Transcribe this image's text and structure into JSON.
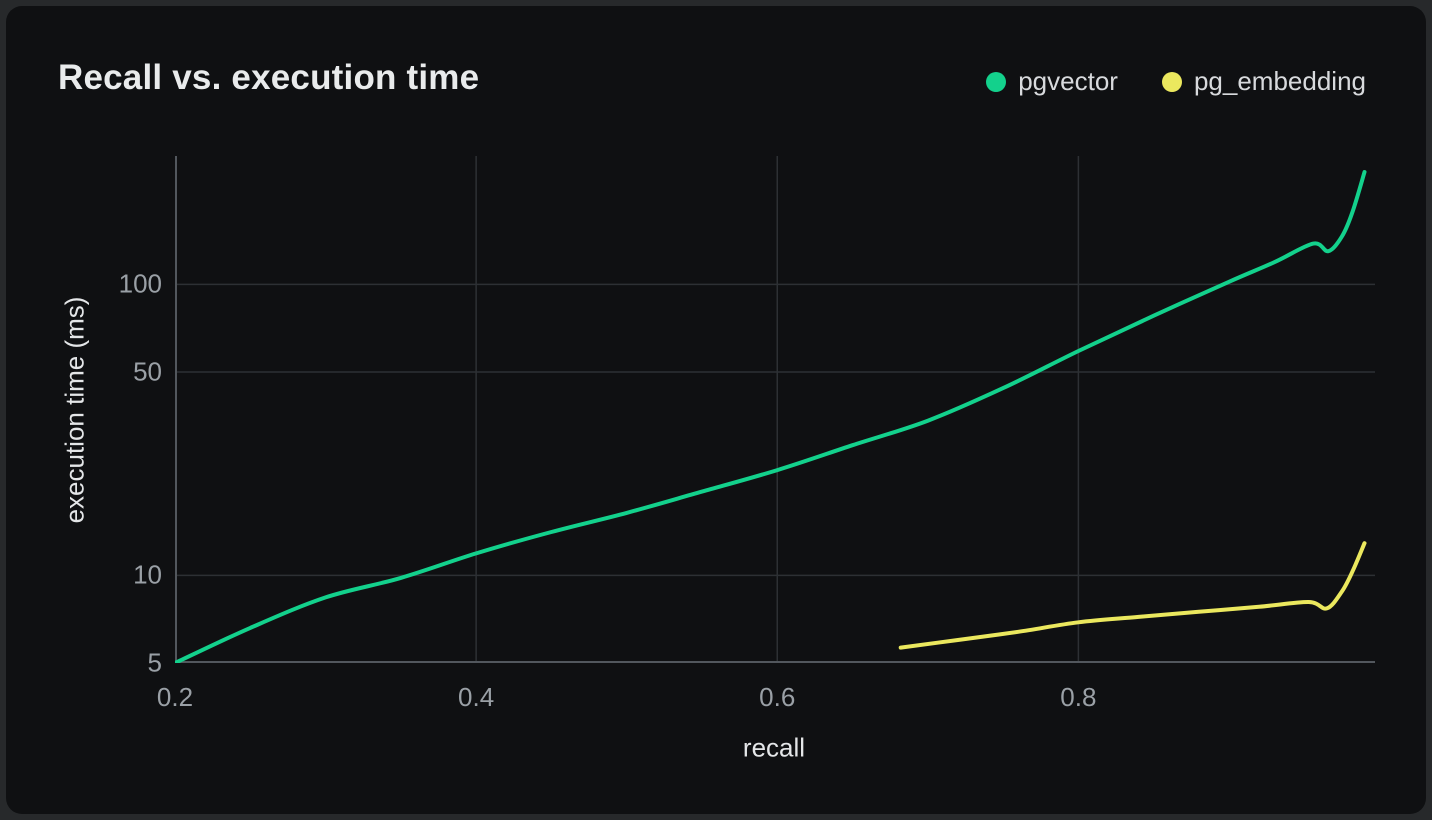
{
  "title": "Recall vs. execution time",
  "legend": [
    {
      "label": "pgvector",
      "color": "#13d18c"
    },
    {
      "label": "pg_embedding",
      "color": "#ebe85e"
    }
  ],
  "colors": {
    "outer_background": "#27292b",
    "card_background": "#0f1012",
    "title_text": "#e9ebec",
    "legend_text": "#d8dadd",
    "tick_text": "#9aa0a6",
    "axis_title_text": "#e4e6e8",
    "gridline": "#2d3034",
    "axis_line": "#52575d",
    "pgvector_line": "#13d18c",
    "pg_embedding_line": "#ebe85e"
  },
  "chart_data": {
    "type": "line",
    "title": "Recall vs. execution time",
    "xlabel": "recall",
    "ylabel": "execution time (ms)",
    "x_scale": "linear",
    "y_scale": "log",
    "x_range": [
      0.2,
      0.997
    ],
    "y_range": [
      5,
      276
    ],
    "x_ticks": [
      "0.2",
      "0.4",
      "0.6",
      "0.8"
    ],
    "y_ticks": [
      "5",
      "10",
      "50",
      "100"
    ],
    "grid": true,
    "legend_position": "top-right",
    "series": [
      {
        "name": "pgvector",
        "color": "#13d18c",
        "points": [
          [
            0.2,
            5.0
          ],
          [
            0.25,
            6.6
          ],
          [
            0.3,
            8.4
          ],
          [
            0.35,
            9.8
          ],
          [
            0.4,
            11.9
          ],
          [
            0.45,
            14.1
          ],
          [
            0.5,
            16.4
          ],
          [
            0.55,
            19.4
          ],
          [
            0.6,
            23.0
          ],
          [
            0.65,
            28.0
          ],
          [
            0.7,
            34.0
          ],
          [
            0.75,
            44.0
          ],
          [
            0.8,
            59.0
          ],
          [
            0.85,
            78.0
          ],
          [
            0.9,
            102.0
          ],
          [
            0.93,
            119.0
          ],
          [
            0.956,
            138.0
          ],
          [
            0.966,
            130.0
          ],
          [
            0.975,
            146.0
          ],
          [
            0.982,
            177.0
          ],
          [
            0.99,
            243.0
          ]
        ]
      },
      {
        "name": "pg_embedding",
        "color": "#ebe85e",
        "points": [
          [
            0.682,
            5.65
          ],
          [
            0.72,
            6.0
          ],
          [
            0.76,
            6.4
          ],
          [
            0.8,
            6.9
          ],
          [
            0.84,
            7.2
          ],
          [
            0.88,
            7.5
          ],
          [
            0.92,
            7.8
          ],
          [
            0.953,
            8.1
          ],
          [
            0.965,
            7.7
          ],
          [
            0.975,
            8.8
          ],
          [
            0.982,
            10.3
          ],
          [
            0.99,
            12.9
          ]
        ]
      }
    ]
  }
}
